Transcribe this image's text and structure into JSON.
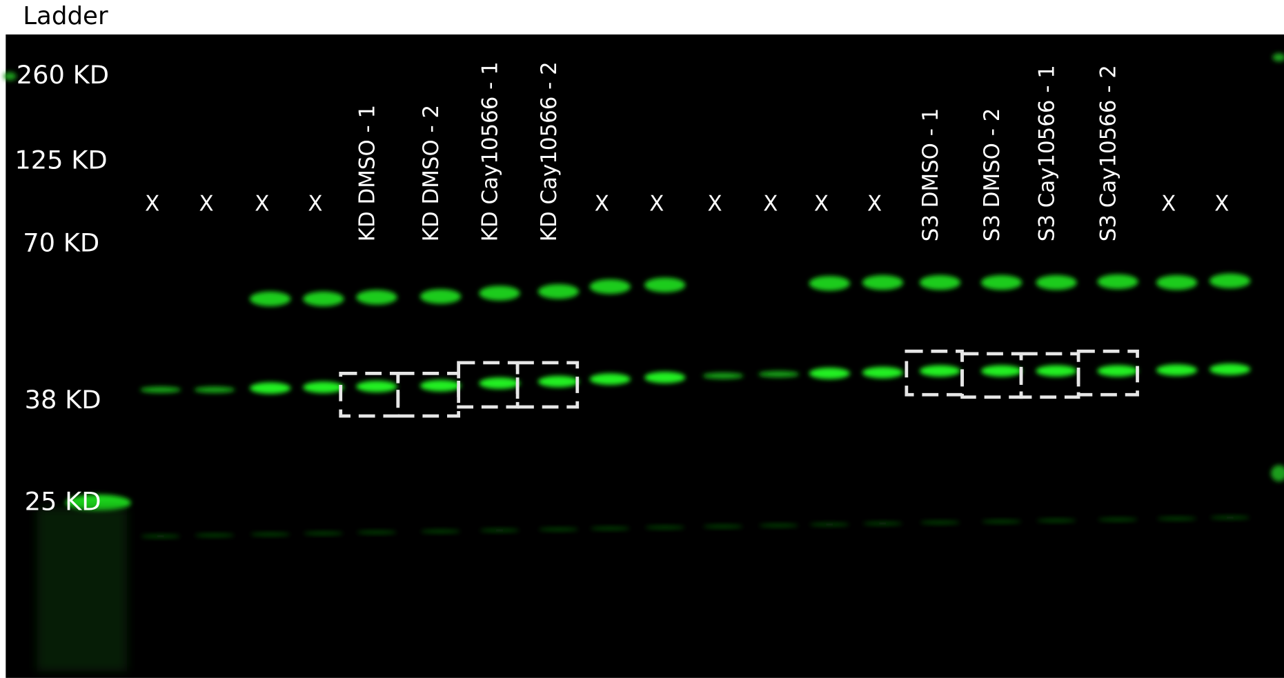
{
  "header": {
    "title": "Ladder"
  },
  "markers": [
    "260 KD",
    "125 KD",
    "70 KD",
    "38 KD",
    "25 KD"
  ],
  "lanes": [
    "X",
    "X",
    "X",
    "X",
    "KD DMSO - 1",
    "KD DMSO - 2",
    "KD Cay10566 - 1",
    "KD Cay10566 - 2",
    "X",
    "X",
    "X",
    "X",
    "X",
    "X",
    "S3 DMSO - 1",
    "S3 DMSO - 2",
    "S3 Cay10566 - 1",
    "S3 Cay10566 - 2",
    "X",
    "X"
  ]
}
